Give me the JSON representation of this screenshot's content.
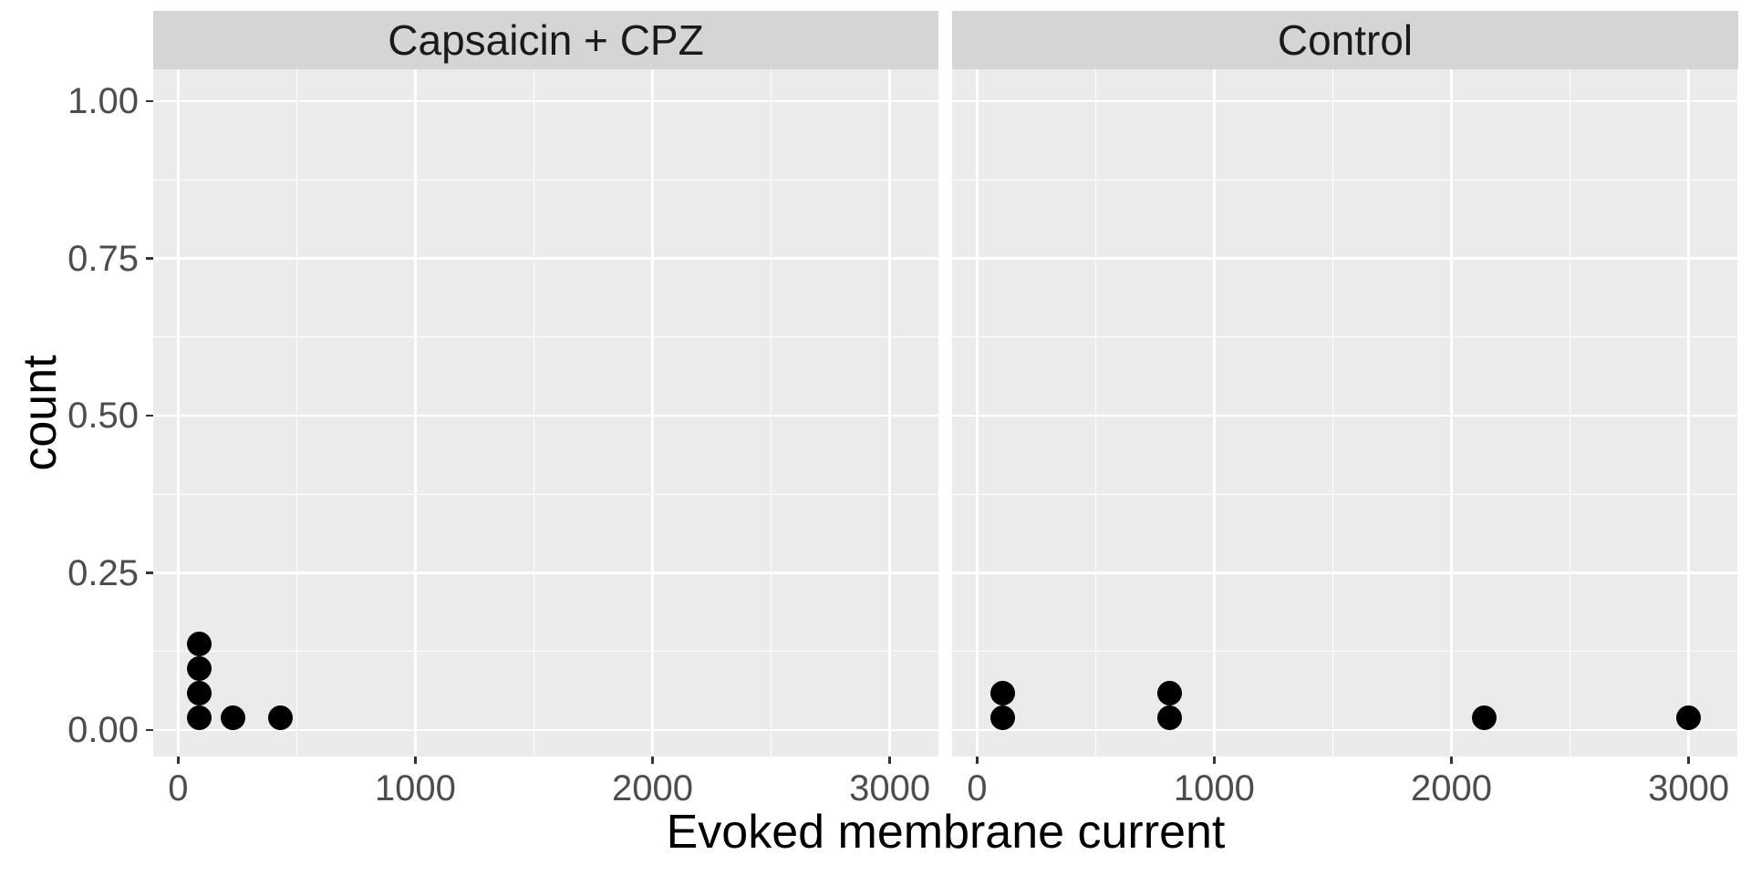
{
  "chart_data": {
    "type": "scatter",
    "subtype": "faceted dot plot (ggplot2 geom_dotplot style, stacked points)",
    "title": "",
    "xlabel": "Evoked membrane current",
    "ylabel": "count",
    "legend": false,
    "grid": "white major and minor gridlines on grey panel",
    "xlim": [
      -105,
      3205
    ],
    "ylim": [
      -0.042,
      1.051
    ],
    "x_ticks": [
      {
        "v": 0,
        "label": "0"
      },
      {
        "v": 1000,
        "label": "1000"
      },
      {
        "v": 2000,
        "label": "2000"
      },
      {
        "v": 3000,
        "label": "3000"
      }
    ],
    "x_minor": [
      500,
      1500,
      2500
    ],
    "y_ticks": [
      {
        "v": 1.0,
        "label": "1.00"
      },
      {
        "v": 0.75,
        "label": "0.75"
      },
      {
        "v": 0.5,
        "label": "0.50"
      },
      {
        "v": 0.25,
        "label": "0.25"
      },
      {
        "v": 0.0,
        "label": "0.00"
      }
    ],
    "y_minor": [
      0.125,
      0.375,
      0.625,
      0.875
    ],
    "facets": [
      {
        "label": "Capsaicin + CPZ",
        "x_values": [
          90,
          90,
          90,
          90,
          230,
          430
        ],
        "points": [
          {
            "x": 90,
            "y": 0.02
          },
          {
            "x": 90,
            "y": 0.059
          },
          {
            "x": 90,
            "y": 0.098
          },
          {
            "x": 90,
            "y": 0.137
          },
          {
            "x": 230,
            "y": 0.02
          },
          {
            "x": 430,
            "y": 0.02
          }
        ]
      },
      {
        "label": "Control",
        "x_values": [
          110,
          110,
          810,
          810,
          2140,
          3000
        ],
        "points": [
          {
            "x": 110,
            "y": 0.02
          },
          {
            "x": 110,
            "y": 0.059
          },
          {
            "x": 810,
            "y": 0.02
          },
          {
            "x": 810,
            "y": 0.059
          },
          {
            "x": 2140,
            "y": 0.02
          },
          {
            "x": 3000,
            "y": 0.02
          }
        ]
      }
    ],
    "colors": {
      "panel_bg": "#EBEBEB",
      "strip_bg": "#D5D5D5",
      "gridline": "#FFFFFF",
      "point": "#000000",
      "tick_label_text": "#4D4D4D",
      "strip_text": "#1A1A1A",
      "axis_title_text": "#000000",
      "tick_mark": "#333333"
    }
  }
}
